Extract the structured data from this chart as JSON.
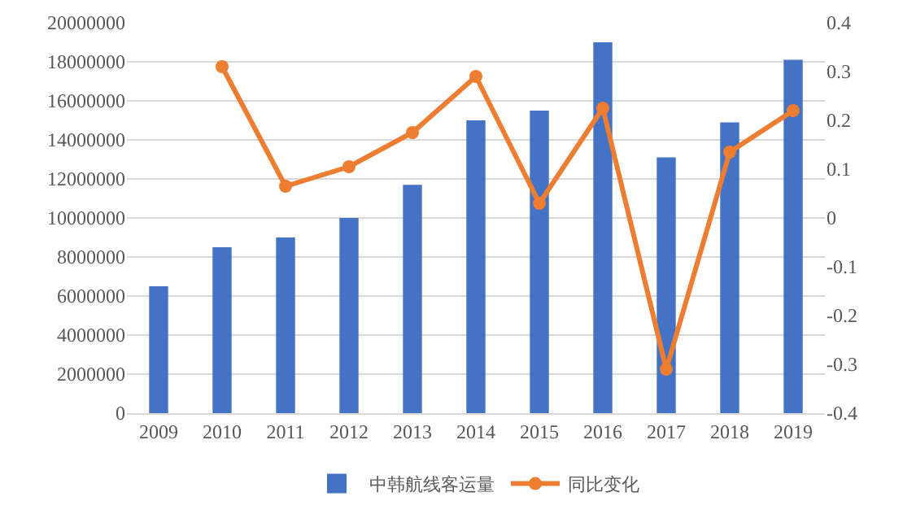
{
  "chart_data": {
    "type": "bar",
    "categories": [
      "2009",
      "2010",
      "2011",
      "2012",
      "2013",
      "2014",
      "2015",
      "2016",
      "2017",
      "2018",
      "2019"
    ],
    "series": [
      {
        "name": "中韩航线客运量",
        "color": "#4472c4",
        "values": [
          6500000,
          8500000,
          9000000,
          10000000,
          11700000,
          15000000,
          15500000,
          19000000,
          13100000,
          14900000,
          18100000
        ]
      },
      {
        "name": "同比变化",
        "type": "line",
        "axis": "y2",
        "color": "#ed7d31",
        "marker": "circle",
        "values": [
          null,
          0.31,
          0.065,
          0.105,
          0.175,
          0.29,
          0.03,
          0.225,
          -0.31,
          0.135,
          0.22
        ]
      }
    ],
    "ylim": [
      0,
      20000000
    ],
    "yticks": [
      0,
      2000000,
      4000000,
      6000000,
      8000000,
      10000000,
      12000000,
      14000000,
      16000000,
      18000000,
      20000000
    ],
    "y2lim": [
      -0.4,
      0.4
    ],
    "y2ticks": [
      {
        "value": -0.4,
        "label": "-0.4"
      },
      {
        "value": -0.3,
        "label": "-0.3"
      },
      {
        "value": -0.2,
        "label": "-0.2"
      },
      {
        "value": -0.1,
        "label": "-0.1"
      },
      0,
      {
        "value": 0.1,
        "label": "0.1"
      },
      {
        "value": 0.2,
        "label": "0.2"
      },
      {
        "value": 0.3,
        "label": "0.3"
      },
      {
        "value": 0.4,
        "label": "0.4"
      }
    ],
    "grid": "y",
    "legend": "bottom"
  }
}
